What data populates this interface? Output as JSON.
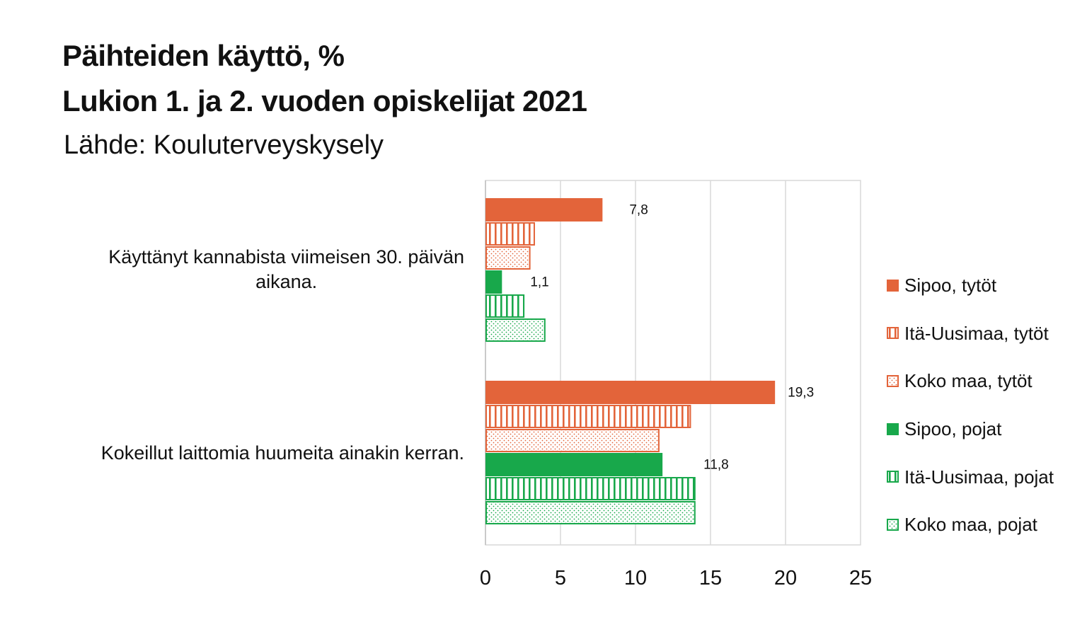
{
  "chart_data": {
    "type": "bar",
    "orientation": "horizontal",
    "title": "Päihteiden käyttö, %",
    "subtitle": "Lukion 1. ja 2. vuoden opiskelijat 2021",
    "source": "Lähde: Kouluterveyskysely",
    "categories": [
      "Käyttänyt kannabista viimeisen 30. päivän aikana.",
      "Kokeillut laittomia huumeita ainakin kerran."
    ],
    "category_lines": [
      [
        "Käyttänyt kannabista viimeisen 30. päivän",
        "aikana."
      ],
      [
        "Kokeillut laittomia huumeita ainakin kerran."
      ]
    ],
    "series": [
      {
        "name": "Sipoo, tytöt",
        "values": [
          7.8,
          19.3
        ],
        "color": "#E3643A",
        "pattern": "solid",
        "labels": [
          "7,8",
          "19,3"
        ]
      },
      {
        "name": "Itä-Uusimaa, tytöt",
        "values": [
          3.3,
          13.7
        ],
        "color": "#E3643A",
        "pattern": "stripes"
      },
      {
        "name": "Koko maa, tytöt",
        "values": [
          3.0,
          11.6
        ],
        "color": "#E3643A",
        "pattern": "dots"
      },
      {
        "name": "Sipoo, pojat",
        "values": [
          1.1,
          11.8
        ],
        "color": "#18A84B",
        "pattern": "solid",
        "labels": [
          "1,1",
          "11,8"
        ]
      },
      {
        "name": "Itä-Uusimaa, pojat",
        "values": [
          2.6,
          14.0
        ],
        "color": "#18A84B",
        "pattern": "stripes"
      },
      {
        "name": "Koko maa, pojat",
        "values": [
          4.0,
          14.0
        ],
        "color": "#18A84B",
        "pattern": "dots"
      }
    ],
    "xlim": [
      0,
      25
    ],
    "xticks": [
      0,
      5,
      10,
      15,
      20,
      25
    ],
    "grid": true,
    "legend": "right"
  }
}
